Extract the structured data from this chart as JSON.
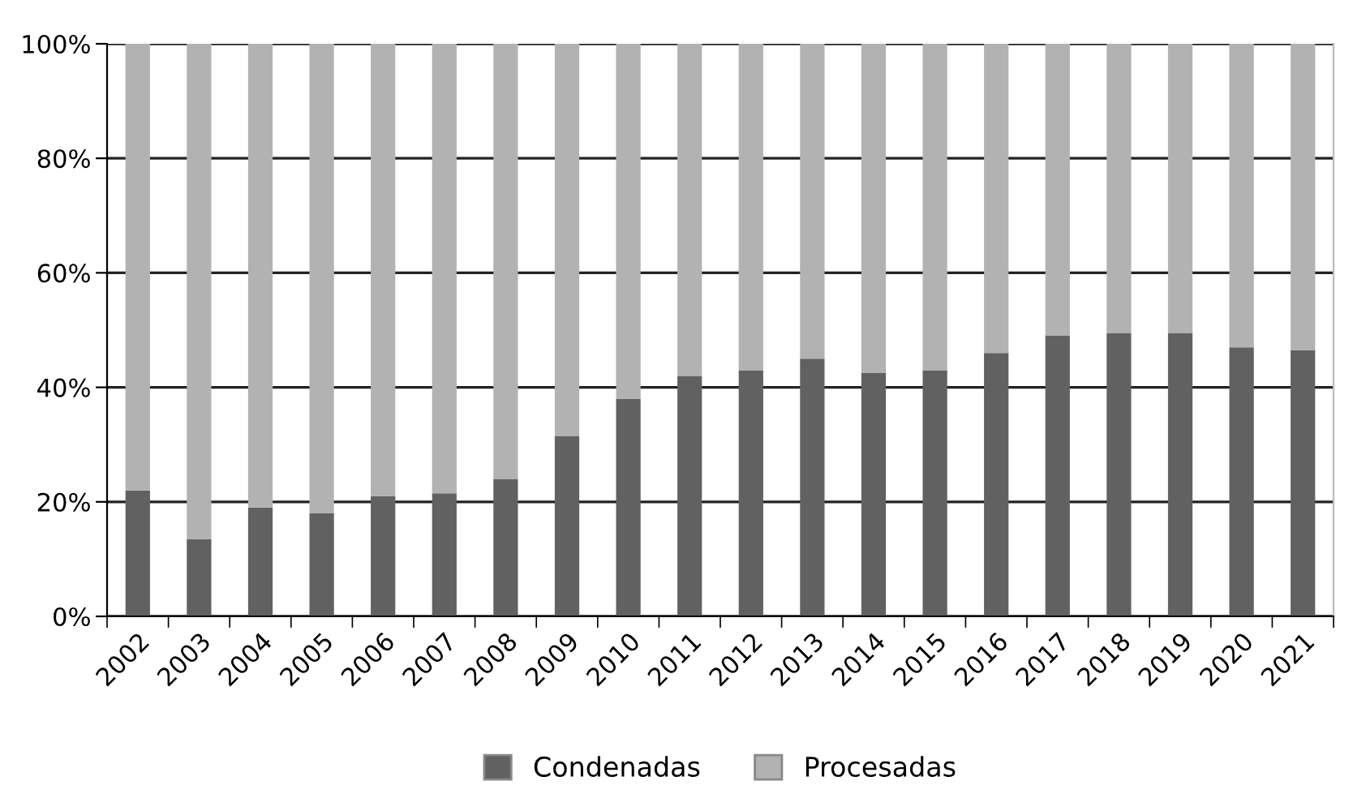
{
  "chart_data": {
    "type": "bar",
    "stacked": true,
    "categories": [
      "2002",
      "2003",
      "2004",
      "2005",
      "2006",
      "2007",
      "2008",
      "2009",
      "2010",
      "2011",
      "2012",
      "2013",
      "2014",
      "2015",
      "2016",
      "2017",
      "2018",
      "2019",
      "2020",
      "2021"
    ],
    "series": [
      {
        "name": "Condenadas",
        "color": "#616161",
        "values": [
          22,
          13.5,
          19,
          18,
          21,
          21.5,
          24,
          31.5,
          38,
          42,
          43,
          45,
          42.5,
          43,
          46,
          49,
          49.5,
          49.5,
          47,
          46.5
        ]
      },
      {
        "name": "Procesadas",
        "color": "#b2b2b2",
        "values": [
          78,
          86.5,
          81,
          82,
          79,
          78.5,
          76,
          68.5,
          62,
          58,
          57,
          55,
          57.5,
          57,
          54,
          51,
          50.5,
          50.5,
          53,
          53.5
        ]
      }
    ],
    "ylim": [
      0,
      100
    ],
    "yticks": [
      {
        "value": 0,
        "label": "0%"
      },
      {
        "value": 20,
        "label": "20%"
      },
      {
        "value": 40,
        "label": "40%"
      },
      {
        "value": 60,
        "label": "60%"
      },
      {
        "value": 80,
        "label": "80%"
      },
      {
        "value": 100,
        "label": "100%"
      }
    ],
    "grid": "y",
    "legend": "bottom"
  }
}
